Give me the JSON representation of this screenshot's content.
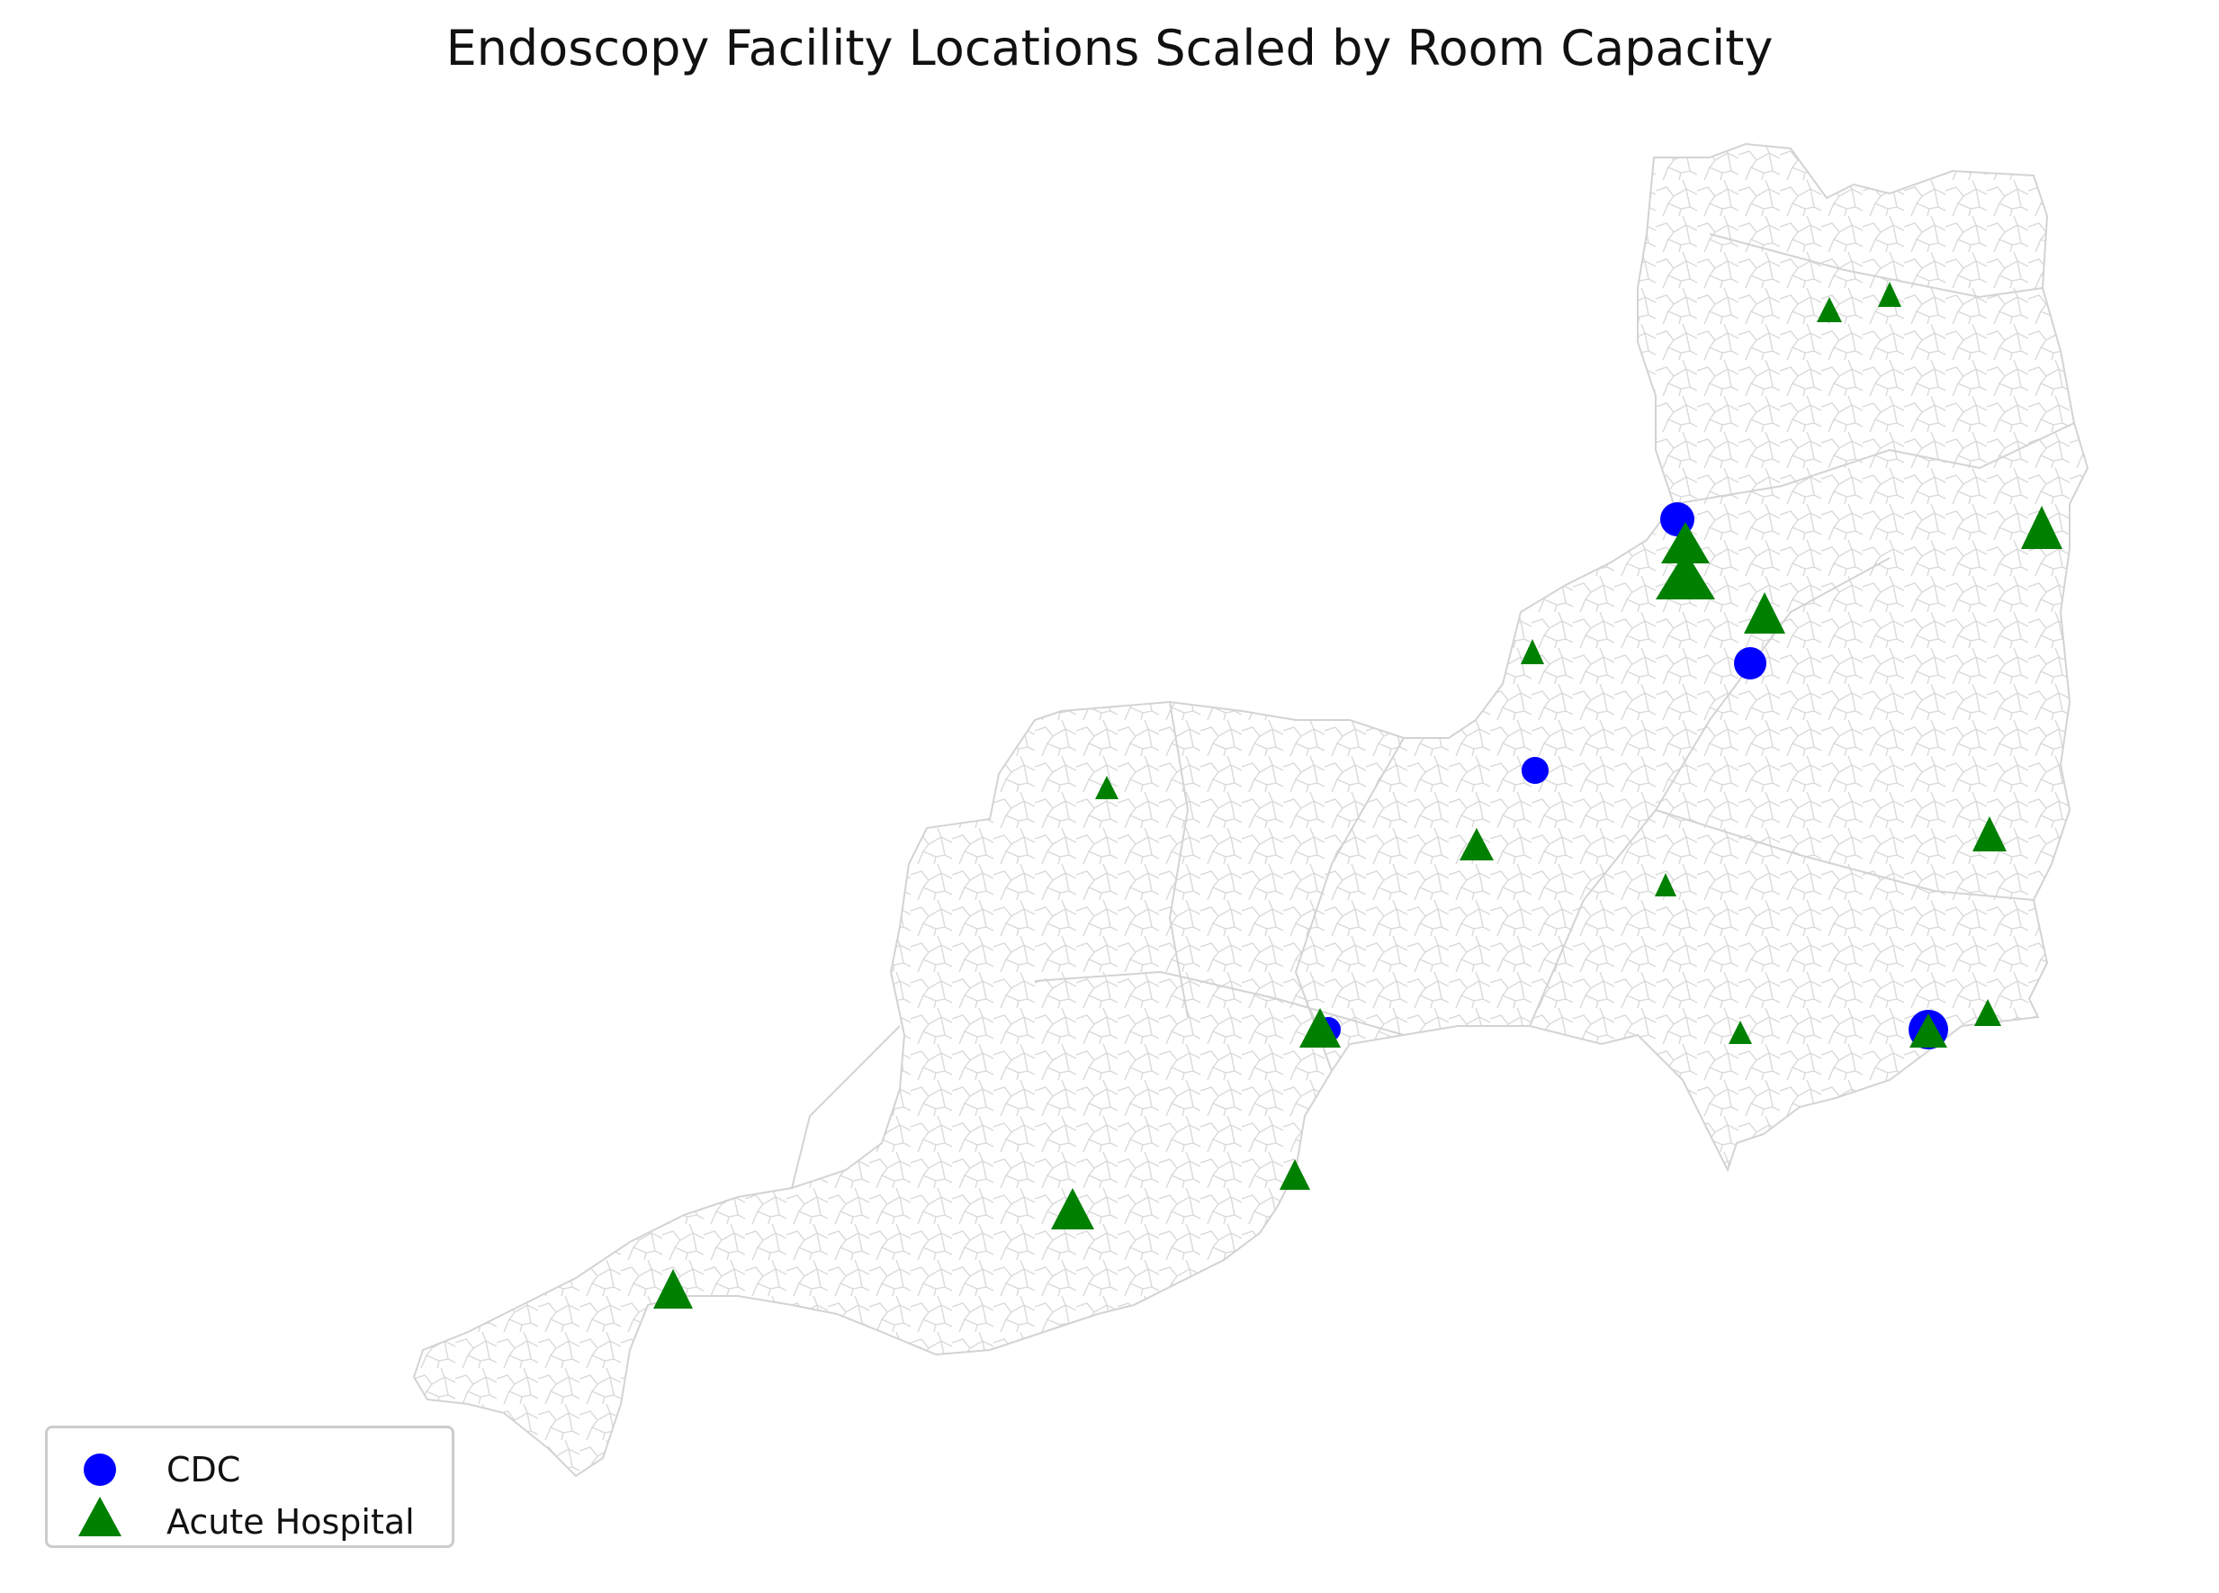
{
  "title": "Endoscopy Facility Locations Scaled by Room Capacity",
  "legend": {
    "placement": "lower-left",
    "entries": [
      {
        "label": "CDC",
        "marker": "circle",
        "color": "#0000ff"
      },
      {
        "label": "Acute Hospital",
        "marker": "triangle",
        "color": "#008000"
      }
    ]
  },
  "map_style": {
    "boundary_color": "#d3d3d3",
    "background": "#ffffff",
    "axes": "off"
  }
}
